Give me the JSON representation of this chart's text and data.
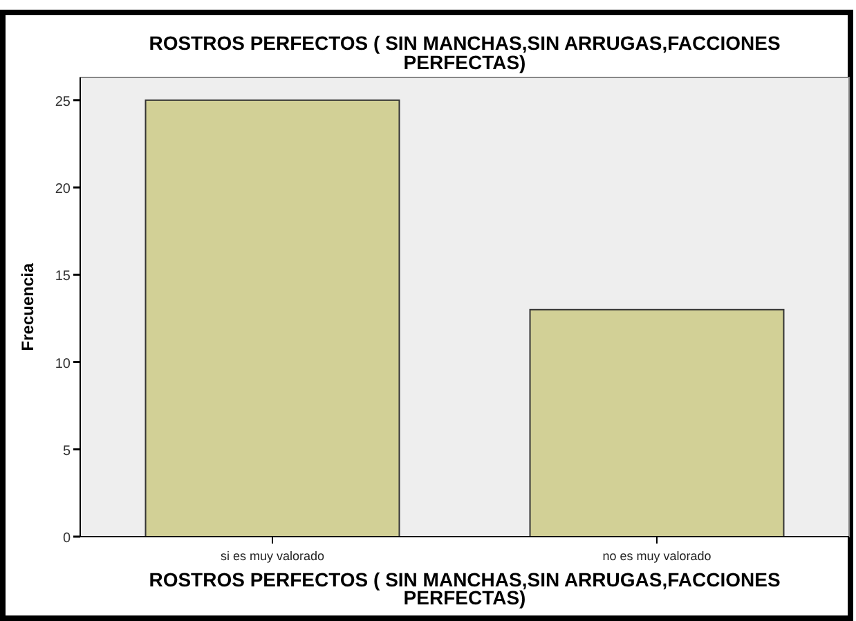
{
  "chart_data": {
    "type": "bar",
    "title": "ROSTROS PERFECTOS ( SIN MANCHAS,SIN ARRUGAS,FACCIONES PERFECTAS)",
    "xlabel": "ROSTROS PERFECTOS ( SIN MANCHAS,SIN ARRUGAS,FACCIONES PERFECTAS)",
    "ylabel": "Frecuencia",
    "categories": [
      "si es muy valorado",
      "no es muy valorado"
    ],
    "values": [
      25,
      13
    ],
    "color": "#d2d096",
    "ylim": [
      0,
      26.3
    ],
    "yticks": [
      0,
      5,
      10,
      15,
      20,
      25
    ],
    "grid": false
  }
}
